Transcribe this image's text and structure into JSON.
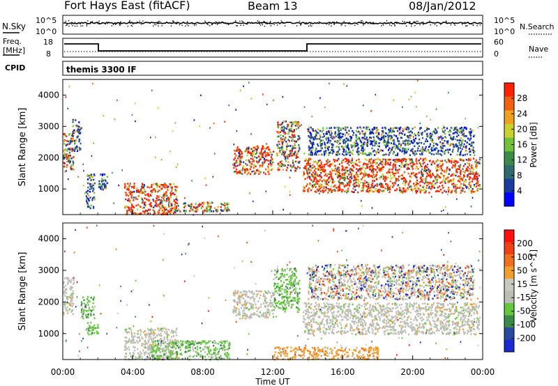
{
  "header": {
    "station": "Fort Hays East (fitACF)",
    "beam": "Beam 13",
    "date": "08/Jan/2012"
  },
  "noise_panel": {
    "left_label": "N.Sky",
    "left_ticks": [
      "10^5",
      "10^0"
    ],
    "right_label": "N.Search",
    "right_ticks": [
      "10^5",
      "10^0"
    ]
  },
  "freq_panel": {
    "left_label_line1": "Freq.",
    "left_label_line2": "[MHz]",
    "left_ticks": [
      "18",
      "8"
    ],
    "right_label": "Nave",
    "right_ticks": [
      "60",
      "0"
    ],
    "cpid_label": "CPID",
    "cpid_text": "themis 3300 IF"
  },
  "colors": {
    "power": [
      "#0000ff",
      "#1a3a9e",
      "#2e6a6e",
      "#3b8a4a",
      "#6fc23a",
      "#c8d22a",
      "#f0a020",
      "#f06010",
      "#ff2000"
    ],
    "velocity": [
      "#1a2ad0",
      "#2a4aa0",
      "#3a8a4a",
      "#64c83c",
      "#bdbdb5",
      "#c8c8c0",
      "#f0a030",
      "#f07020",
      "#f04018",
      "#ff1010"
    ]
  },
  "chart_data": [
    {
      "type": "heatmap",
      "title": "",
      "ylabel": "Slant Range [km]",
      "xlabel": "",
      "xlim": [
        "00:00",
        "24:00"
      ],
      "ylim": [
        180,
        4500
      ],
      "y_ticks": [
        "1000",
        "2000",
        "3000",
        "4000"
      ],
      "colorbar_label": "Power [dB]",
      "colorbar_ticks": [
        "28",
        "24",
        "20",
        "16",
        "12",
        "8",
        "4"
      ],
      "scatter_regions": [
        {
          "hours": [
            0.0,
            0.6
          ],
          "range_km": [
            1600,
            2800
          ],
          "level": "mid"
        },
        {
          "hours": [
            0.5,
            1.0
          ],
          "range_km": [
            2200,
            3300
          ],
          "level": "low"
        },
        {
          "hours": [
            1.3,
            1.8
          ],
          "range_km": [
            400,
            1500
          ],
          "level": "low"
        },
        {
          "hours": [
            2.0,
            2.5
          ],
          "range_km": [
            1000,
            1500
          ],
          "level": "low"
        },
        {
          "hours": [
            3.5,
            6.5
          ],
          "range_km": [
            200,
            1200
          ],
          "level": "high"
        },
        {
          "hours": [
            6.0,
            9.5
          ],
          "range_km": [
            300,
            600
          ],
          "level": "mid"
        },
        {
          "hours": [
            9.7,
            12.0
          ],
          "range_km": [
            1500,
            2400
          ],
          "level": "high"
        },
        {
          "hours": [
            12.2,
            13.5
          ],
          "range_km": [
            1600,
            3200
          ],
          "level": "mid"
        },
        {
          "hours": [
            13.7,
            23.8
          ],
          "range_km": [
            900,
            2000
          ],
          "level": "high"
        },
        {
          "hours": [
            14.0,
            23.5
          ],
          "range_km": [
            2100,
            3000
          ],
          "level": "low"
        }
      ]
    },
    {
      "type": "heatmap",
      "title": "",
      "ylabel": "Slant Range [km]",
      "xlabel": "Time UT",
      "xlim": [
        "00:00",
        "24:00"
      ],
      "ylim": [
        180,
        4500
      ],
      "y_ticks": [
        "1000",
        "2000",
        "3000",
        "4000"
      ],
      "x_ticks": [
        "00:00",
        "04:00",
        "08:00",
        "12:00",
        "16:00",
        "20:00",
        "00:00"
      ],
      "colorbar_label": "Velocity [m s^-1]",
      "colorbar_ticks": [
        "200",
        "100",
        "50",
        "15",
        "-15",
        "-50",
        "-100",
        "-200"
      ],
      "scatter_regions": [
        {
          "hours": [
            0.0,
            0.6
          ],
          "range_km": [
            1600,
            2800
          ],
          "level": "grey"
        },
        {
          "hours": [
            1.0,
            1.8
          ],
          "range_km": [
            1500,
            2200
          ],
          "level": "green"
        },
        {
          "hours": [
            1.3,
            2.0
          ],
          "range_km": [
            1000,
            1400
          ],
          "level": "green"
        },
        {
          "hours": [
            3.5,
            6.5
          ],
          "range_km": [
            200,
            1200
          ],
          "level": "grey"
        },
        {
          "hours": [
            5.0,
            9.5
          ],
          "range_km": [
            200,
            800
          ],
          "level": "green"
        },
        {
          "hours": [
            9.7,
            12.0
          ],
          "range_km": [
            1500,
            2400
          ],
          "level": "grey"
        },
        {
          "hours": [
            12.0,
            13.5
          ],
          "range_km": [
            1700,
            3100
          ],
          "level": "green"
        },
        {
          "hours": [
            13.7,
            23.8
          ],
          "range_km": [
            1000,
            2000
          ],
          "level": "grey"
        },
        {
          "hours": [
            14.0,
            23.5
          ],
          "range_km": [
            2100,
            3200
          ],
          "level": "mixed"
        },
        {
          "hours": [
            12.0,
            18.0
          ],
          "range_km": [
            200,
            600
          ],
          "level": "orange"
        }
      ]
    }
  ]
}
